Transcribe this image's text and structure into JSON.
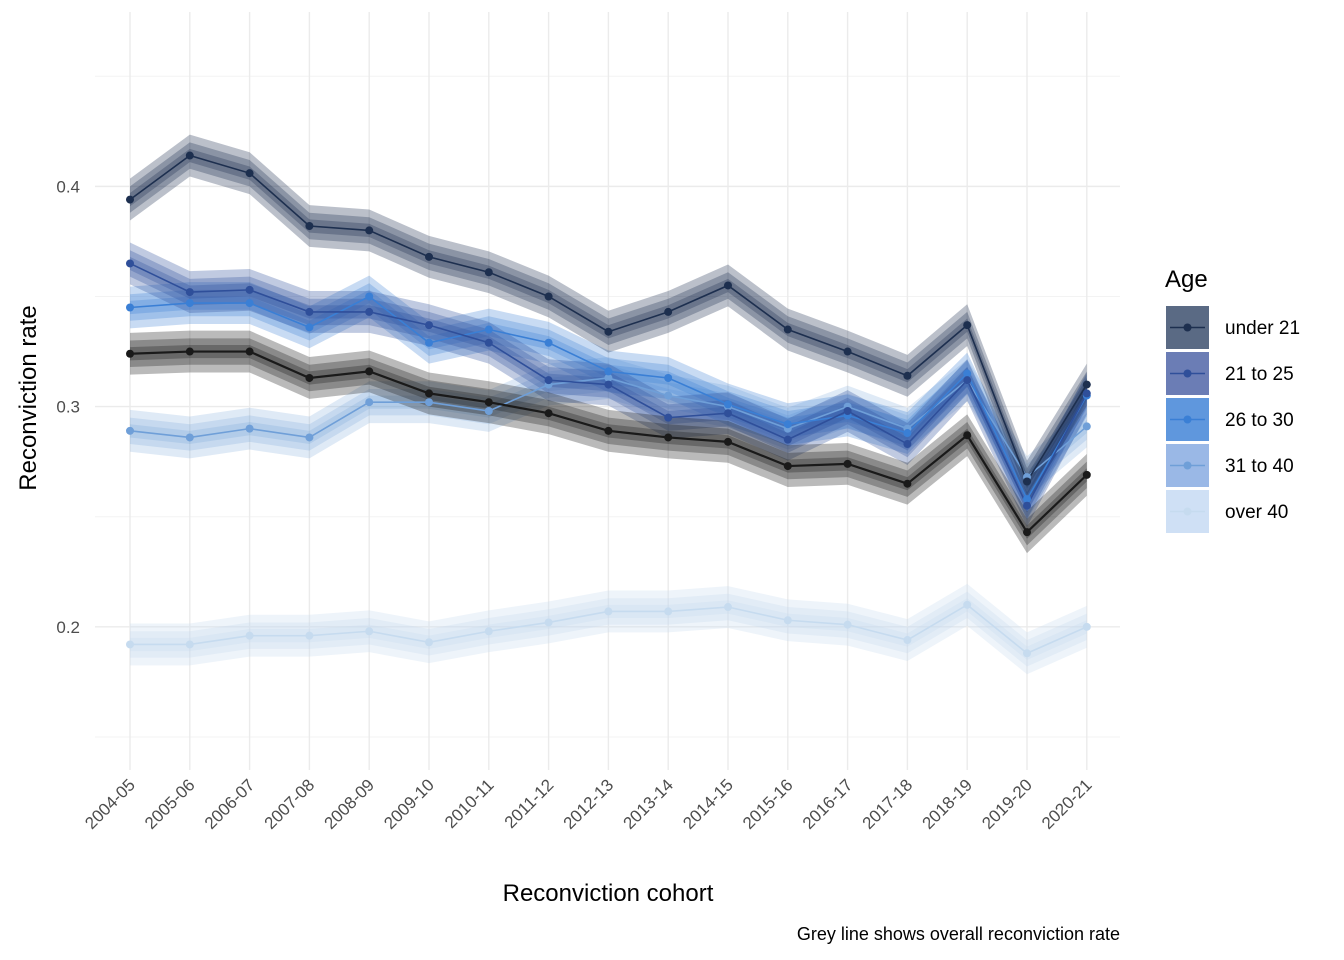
{
  "chart_data": {
    "type": "line",
    "xlabel": "Reconviction cohort",
    "ylabel": "Reconviction rate",
    "caption": "Grey line shows overall reconviction rate",
    "legend_title": "Age",
    "legend_position": "right",
    "grid": true,
    "ylim": [
      0.135,
      0.471
    ],
    "y_ticks": [
      0.2,
      0.3,
      0.4
    ],
    "y_tick_labels": [
      "0.2",
      "0.3",
      "0.4"
    ],
    "categories": [
      "2004-05",
      "2005-06",
      "2006-07",
      "2007-08",
      "2008-09",
      "2009-10",
      "2010-11",
      "2011-12",
      "2012-13",
      "2013-14",
      "2014-15",
      "2015-16",
      "2016-17",
      "2017-18",
      "2018-19",
      "2019-20",
      "2020-21"
    ],
    "series": [
      {
        "name": "over 40",
        "color": "#c6dbef",
        "values": [
          0.192,
          0.192,
          0.196,
          0.196,
          0.198,
          0.193,
          0.198,
          0.202,
          0.207,
          0.207,
          0.209,
          0.203,
          0.201,
          0.194,
          0.21,
          0.188,
          0.2
        ]
      },
      {
        "name": "31 to 40",
        "color": "#6f9fd8",
        "values": [
          0.289,
          0.286,
          0.29,
          0.286,
          0.302,
          0.302,
          0.298,
          0.31,
          0.313,
          0.305,
          0.3,
          0.29,
          0.3,
          0.29,
          0.312,
          0.268,
          0.291
        ]
      },
      {
        "name": "26 to 30",
        "color": "#3a7fd5",
        "values": [
          0.345,
          0.347,
          0.347,
          0.336,
          0.35,
          0.329,
          0.335,
          0.329,
          0.316,
          0.313,
          0.301,
          0.292,
          0.296,
          0.288,
          0.315,
          0.258,
          0.305
        ]
      },
      {
        "name": "21 to 25",
        "color": "#2f4f9a",
        "values": [
          0.365,
          0.352,
          0.353,
          0.343,
          0.343,
          0.337,
          0.329,
          0.312,
          0.31,
          0.295,
          0.297,
          0.285,
          0.298,
          0.283,
          0.312,
          0.255,
          0.306
        ]
      },
      {
        "name": "under 21",
        "color": "#1d2f4f",
        "values": [
          0.394,
          0.414,
          0.406,
          0.382,
          0.38,
          0.368,
          0.361,
          0.35,
          0.334,
          0.343,
          0.355,
          0.335,
          0.325,
          0.314,
          0.337,
          0.266,
          0.31
        ]
      },
      {
        "name": "",
        "color": "#1a1a1a",
        "values": [
          0.324,
          0.325,
          0.325,
          0.313,
          0.316,
          0.306,
          0.302,
          0.297,
          0.289,
          0.286,
          0.284,
          0.273,
          0.274,
          0.265,
          0.287,
          0.243,
          0.269
        ]
      }
    ]
  }
}
